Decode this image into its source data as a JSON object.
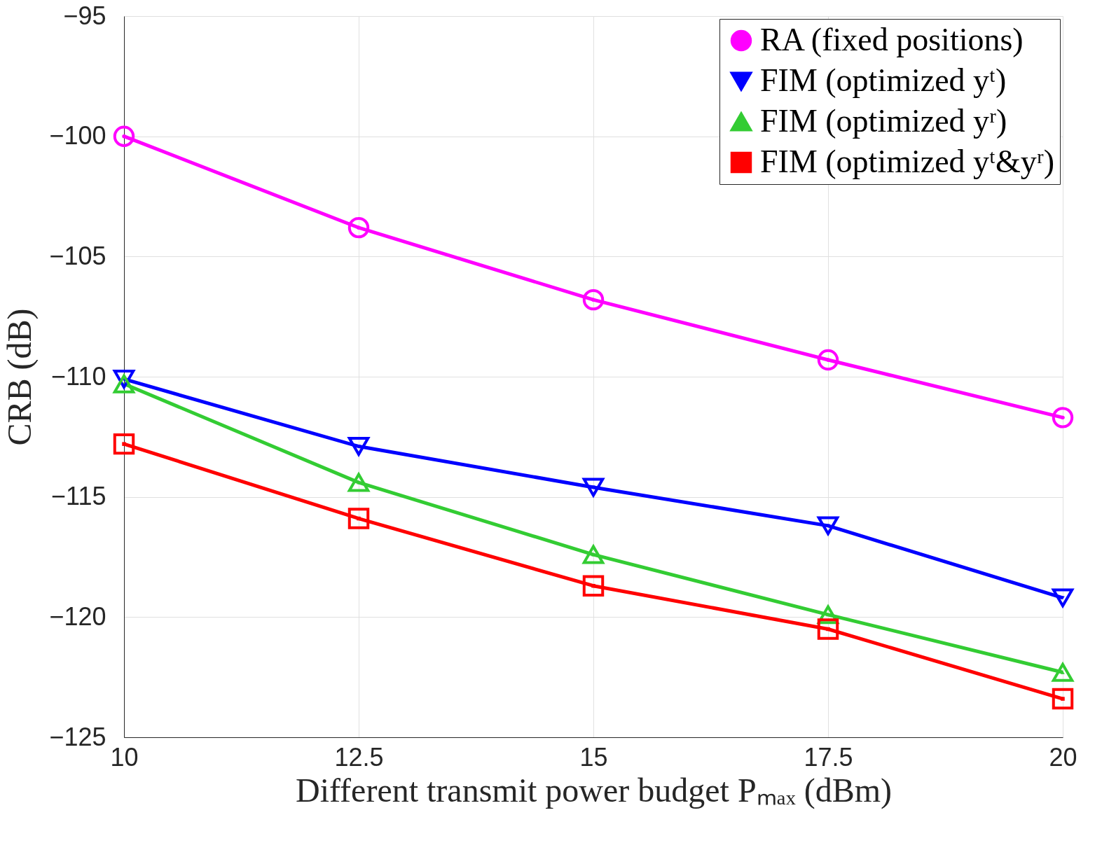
{
  "chart_data": {
    "type": "line",
    "xlabel": "Different transmit power budget Pₘₐₓ (dBm)",
    "ylabel": "CRB (dB)",
    "x": [
      10,
      12.5,
      15,
      17.5,
      20
    ],
    "xlim": [
      10,
      20
    ],
    "xticks": [
      10,
      12.5,
      15,
      17.5,
      20
    ],
    "ylim": [
      -125,
      -95
    ],
    "yticks": [
      -125,
      -120,
      -115,
      -110,
      -105,
      -100,
      -95
    ],
    "grid": true,
    "legend": "top right",
    "line_style": "solid",
    "series": [
      {
        "name": "RA (fixed positions)",
        "color": "#ff00ff",
        "marker": "circle",
        "values": [
          -100.0,
          -103.8,
          -106.8,
          -109.3,
          -111.7
        ]
      },
      {
        "name": "FIM (optimized yᵗ)",
        "color": "#0000ff",
        "marker": "triangle-down",
        "values": [
          -110.1,
          -112.9,
          -114.6,
          -116.2,
          -119.2
        ]
      },
      {
        "name": "FIM (optimized yʳ)",
        "color": "#33cc33",
        "marker": "triangle",
        "values": [
          -110.3,
          -114.4,
          -117.4,
          -119.9,
          -122.3
        ]
      },
      {
        "name": "FIM (optimized yᵗ&yʳ)",
        "color": "#ff0000",
        "marker": "square",
        "values": [
          -112.8,
          -115.9,
          -118.7,
          -120.5,
          -123.4
        ]
      }
    ]
  }
}
